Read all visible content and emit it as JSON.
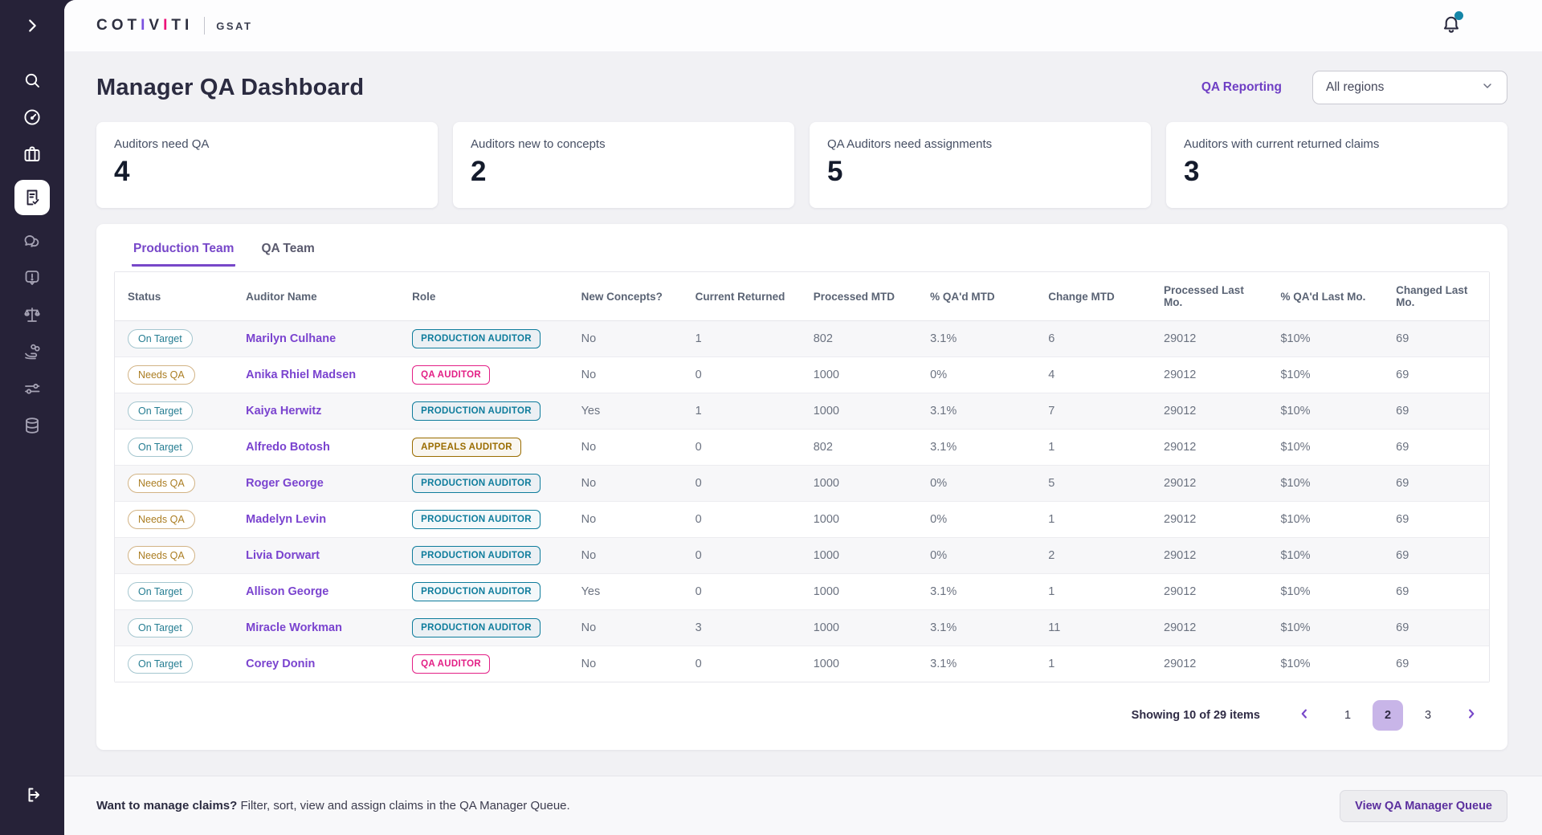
{
  "topbar": {
    "logo_primary": "COTIVITI",
    "logo_letters": [
      {
        "ch": "C",
        "color": "dark"
      },
      {
        "ch": "O",
        "color": "dark"
      },
      {
        "ch": "T",
        "color": "dark"
      },
      {
        "ch": "I",
        "color": "purple"
      },
      {
        "ch": "V",
        "color": "dark"
      },
      {
        "ch": "I",
        "color": "pink"
      },
      {
        "ch": "T",
        "color": "dark"
      },
      {
        "ch": "I",
        "color": "dark"
      }
    ],
    "logo_secondary": "GSAT",
    "notification_icon": "bell-icon",
    "notification_has_unread": true
  },
  "sidebar": {
    "items": [
      {
        "icon": "chevron-right-icon",
        "name": "expand"
      },
      {
        "icon": "search-icon",
        "name": "search"
      },
      {
        "icon": "gauge-icon",
        "name": "dashboard"
      },
      {
        "icon": "briefcase-icon",
        "name": "work"
      },
      {
        "icon": "document-check-icon",
        "name": "qa-dashboard",
        "active": true
      },
      {
        "icon": "chat-bubbles-icon",
        "name": "messages"
      },
      {
        "icon": "alert-bubble-icon",
        "name": "alerts"
      },
      {
        "icon": "scales-icon",
        "name": "compliance"
      },
      {
        "icon": "hand-coins-icon",
        "name": "payments"
      },
      {
        "icon": "sliders-icon",
        "name": "settings"
      },
      {
        "icon": "database-icon",
        "name": "data"
      },
      {
        "icon": "logout-icon",
        "name": "logout"
      }
    ]
  },
  "header": {
    "title": "Manager QA Dashboard",
    "reporting_link": "QA Reporting",
    "region_selected": "All regions"
  },
  "stats": [
    {
      "label": "Auditors need QA",
      "value": "4"
    },
    {
      "label": "Auditors new to concepts",
      "value": "2"
    },
    {
      "label": "QA Auditors need assignments",
      "value": "5"
    },
    {
      "label": "Auditors with current returned claims",
      "value": "3"
    }
  ],
  "tabs": [
    {
      "label": "Production Team",
      "active": true
    },
    {
      "label": "QA Team",
      "active": false
    }
  ],
  "table": {
    "columns": [
      "Status",
      "Auditor Name",
      "Role",
      "New Concepts?",
      "Current Returned",
      "Processed MTD",
      "% QA'd MTD",
      "Change MTD",
      "Processed Last Mo.",
      "% QA'd Last Mo.",
      "Changed Last Mo."
    ],
    "rows": [
      {
        "status": "On Target",
        "name": "Marilyn Culhane",
        "role": "PRODUCTION AUDITOR",
        "new_concepts": "No",
        "current_returned": "1",
        "processed_mtd": "802",
        "qad_mtd": "3.1%",
        "change_mtd": "6",
        "processed_last_mo": "29012",
        "qad_last_mo": "$10%",
        "changed_last_mo": "69"
      },
      {
        "status": "Needs QA",
        "name": "Anika Rhiel Madsen",
        "role": "QA AUDITOR",
        "new_concepts": "No",
        "current_returned": "0",
        "processed_mtd": "1000",
        "qad_mtd": "0%",
        "change_mtd": "4",
        "processed_last_mo": "29012",
        "qad_last_mo": "$10%",
        "changed_last_mo": "69"
      },
      {
        "status": "On Target",
        "name": "Kaiya Herwitz",
        "role": "PRODUCTION AUDITOR",
        "new_concepts": "Yes",
        "current_returned": "1",
        "processed_mtd": "1000",
        "qad_mtd": "3.1%",
        "change_mtd": "7",
        "processed_last_mo": "29012",
        "qad_last_mo": "$10%",
        "changed_last_mo": "69"
      },
      {
        "status": "On Target",
        "name": "Alfredo Botosh",
        "role": "APPEALS AUDITOR",
        "new_concepts": "No",
        "current_returned": "0",
        "processed_mtd": "802",
        "qad_mtd": "3.1%",
        "change_mtd": "1",
        "processed_last_mo": "29012",
        "qad_last_mo": "$10%",
        "changed_last_mo": "69"
      },
      {
        "status": "Needs QA",
        "name": "Roger George",
        "role": "PRODUCTION AUDITOR",
        "new_concepts": "No",
        "current_returned": "0",
        "processed_mtd": "1000",
        "qad_mtd": "0%",
        "change_mtd": "5",
        "processed_last_mo": "29012",
        "qad_last_mo": "$10%",
        "changed_last_mo": "69"
      },
      {
        "status": "Needs QA",
        "name": "Madelyn Levin",
        "role": "PRODUCTION AUDITOR",
        "new_concepts": "No",
        "current_returned": "0",
        "processed_mtd": "1000",
        "qad_mtd": "0%",
        "change_mtd": "1",
        "processed_last_mo": "29012",
        "qad_last_mo": "$10%",
        "changed_last_mo": "69"
      },
      {
        "status": "Needs QA",
        "name": "Livia Dorwart",
        "role": "PRODUCTION AUDITOR",
        "new_concepts": "No",
        "current_returned": "0",
        "processed_mtd": "1000",
        "qad_mtd": "0%",
        "change_mtd": "2",
        "processed_last_mo": "29012",
        "qad_last_mo": "$10%",
        "changed_last_mo": "69"
      },
      {
        "status": "On Target",
        "name": "Allison George",
        "role": "PRODUCTION AUDITOR",
        "new_concepts": "Yes",
        "current_returned": "0",
        "processed_mtd": "1000",
        "qad_mtd": "3.1%",
        "change_mtd": "1",
        "processed_last_mo": "29012",
        "qad_last_mo": "$10%",
        "changed_last_mo": "69"
      },
      {
        "status": "On Target",
        "name": "Miracle Workman",
        "role": "PRODUCTION AUDITOR",
        "new_concepts": "No",
        "current_returned": "3",
        "processed_mtd": "1000",
        "qad_mtd": "3.1%",
        "change_mtd": "11",
        "processed_last_mo": "29012",
        "qad_last_mo": "$10%",
        "changed_last_mo": "69"
      },
      {
        "status": "On Target",
        "name": "Corey Donin",
        "role": "QA AUDITOR",
        "new_concepts": "No",
        "current_returned": "0",
        "processed_mtd": "1000",
        "qad_mtd": "3.1%",
        "change_mtd": "1",
        "processed_last_mo": "29012",
        "qad_last_mo": "$10%",
        "changed_last_mo": "69"
      }
    ]
  },
  "pagination": {
    "summary": "Showing 10 of 29 items",
    "pages": [
      "1",
      "2",
      "3"
    ],
    "active_page": "2"
  },
  "footer": {
    "bold_text": "Want to manage claims?",
    "text": " Filter, sort, view and assign claims in the QA Manager Queue.",
    "button_label": "View QA Manager Queue"
  },
  "colors": {
    "accent_purple": "#7747c9",
    "logo_purple": "#7b52e0",
    "logo_pink": "#ed1279",
    "teal_status": "#257d92",
    "amber_status": "#ab7d22",
    "badge_production": "#0e7c9c",
    "badge_qa": "#e31f86",
    "badge_appeals": "#9a6c00",
    "notification_dot": "#1586a8",
    "sidebar_bg": "#262238"
  }
}
